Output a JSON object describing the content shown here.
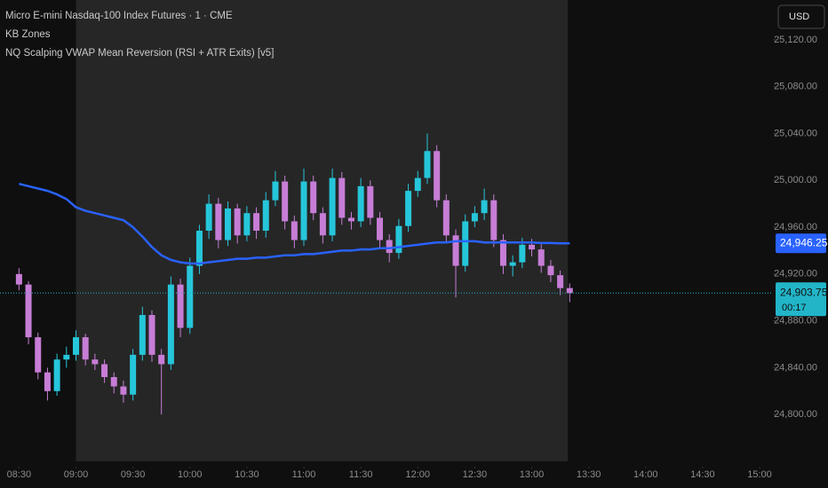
{
  "chart_data": {
    "type": "candlestick",
    "title": "Micro E-mini Nasdaq-100 Index Futures · 1 · CME",
    "indicators": [
      "KB Zones",
      "NQ Scalping VWAP Mean Reversion (RSI + ATR Exits) [v5]"
    ],
    "currency": "USD",
    "x": [
      "08:30",
      "08:35",
      "08:40",
      "08:45",
      "08:50",
      "08:55",
      "09:00",
      "09:05",
      "09:10",
      "09:15",
      "09:20",
      "09:25",
      "09:30",
      "09:35",
      "09:40",
      "09:45",
      "09:50",
      "09:55",
      "10:00",
      "10:05",
      "10:10",
      "10:15",
      "10:20",
      "10:25",
      "10:30",
      "10:35",
      "10:40",
      "10:45",
      "10:50",
      "10:55",
      "11:00",
      "11:05",
      "11:10",
      "11:15",
      "11:20",
      "11:25",
      "11:30",
      "11:35",
      "11:40",
      "11:45",
      "11:50",
      "11:55",
      "12:00",
      "12:05",
      "12:10",
      "12:15",
      "12:20",
      "12:25",
      "12:30",
      "12:35",
      "12:40",
      "12:45",
      "12:50",
      "12:55",
      "13:00",
      "13:05",
      "13:10",
      "13:15",
      "13:20"
    ],
    "open": [
      24920,
      24911,
      24866,
      24836,
      24820,
      24847,
      24851,
      24866,
      24847,
      24843,
      24832,
      24824,
      24817,
      24851,
      24885,
      24851,
      24843,
      24911,
      24874,
      24927,
      24957,
      24980,
      24949,
      24976,
      24953,
      24972,
      24957,
      24983,
      24999,
      24965,
      24949,
      24999,
      24972,
      24953,
      25002,
      24968,
      24965,
      24995,
      24968,
      24949,
      24938,
      24961,
      24991,
      25002,
      25025,
      24983,
      24953,
      24927,
      24965,
      24972,
      24983,
      24949,
      24927,
      24930,
      24945,
      24941,
      24927,
      24919,
      24908
    ],
    "high": [
      24925,
      24914,
      24870,
      24840,
      24852,
      24858,
      24872,
      24869,
      24852,
      24847,
      24836,
      24829,
      24856,
      24892,
      24889,
      24856,
      24918,
      24916,
      24934,
      24962,
      24988,
      24985,
      24982,
      24980,
      24978,
      24977,
      24990,
      25008,
      25004,
      24970,
      25010,
      25004,
      24977,
      25010,
      25007,
      24973,
      25002,
      25000,
      24973,
      24954,
      24967,
      24997,
      25008,
      25040,
      25030,
      24988,
      24958,
      24971,
      24978,
      24993,
      24988,
      24954,
      24936,
      24951,
      24950,
      24946,
      24932,
      24923,
      24912
    ],
    "low": [
      24906,
      24860,
      24830,
      24812,
      24816,
      24840,
      24846,
      24842,
      24838,
      24827,
      24818,
      24810,
      24812,
      24846,
      24845,
      24800,
      24838,
      24866,
      24869,
      24920,
      24950,
      24942,
      24944,
      24946,
      24948,
      24950,
      24951,
      24978,
      24958,
      24942,
      24944,
      24966,
      24946,
      24948,
      24962,
      24958,
      24960,
      24962,
      24942,
      24930,
      24933,
      24956,
      24986,
      24997,
      24977,
      24947,
      24900,
      24922,
      24960,
      24966,
      24943,
      24920,
      24918,
      24925,
      24935,
      24921,
      24913,
      24902,
      24896
    ],
    "close": [
      24911,
      24866,
      24836,
      24820,
      24847,
      24851,
      24866,
      24847,
      24843,
      24832,
      24824,
      24817,
      24851,
      24885,
      24851,
      24843,
      24911,
      24874,
      24927,
      24957,
      24980,
      24949,
      24976,
      24953,
      24972,
      24957,
      24983,
      24999,
      24965,
      24949,
      24999,
      24972,
      24953,
      25002,
      24968,
      24965,
      24995,
      24968,
      24949,
      24938,
      24961,
      24991,
      25002,
      25025,
      24983,
      24953,
      24927,
      24965,
      24972,
      24983,
      24949,
      24927,
      24930,
      24945,
      24941,
      24927,
      24919,
      24908,
      24903.75
    ],
    "up_color": "#26c6da",
    "down_color": "#c77dd6",
    "vwap": {
      "color": "#2962ff",
      "values": [
        24997,
        24995,
        24993,
        24991,
        24988,
        24984,
        24977,
        24974,
        24972,
        24970,
        24968,
        24966,
        24960,
        24952,
        24943,
        24936,
        24932,
        24930,
        24929,
        24929,
        24930,
        24931,
        24932,
        24933,
        24933,
        24934,
        24934,
        24935,
        24936,
        24936,
        24937,
        24937,
        24938,
        24939,
        24940,
        24940,
        24941,
        24941,
        24942,
        24942,
        24943,
        24944,
        24945,
        24946,
        24947,
        24947,
        24948,
        24948,
        24948,
        24947,
        24947,
        24947,
        24947,
        24947,
        24947,
        24946.5,
        24946.5,
        24946.25,
        24946.25
      ],
      "label": {
        "value": 24946.25,
        "label": "24,946.25"
      }
    },
    "last_price": {
      "value": 24903.75,
      "label": "24,903.75",
      "countdown": "00:17",
      "color": "#22b5c8"
    },
    "session": [
      "09:00",
      "13:19"
    ],
    "xlim": [
      "08:20",
      "15:07"
    ],
    "xticks": [
      "08:30",
      "09:00",
      "09:30",
      "10:00",
      "10:30",
      "11:00",
      "11:30",
      "12:00",
      "12:30",
      "13:00",
      "13:30",
      "14:00",
      "14:30",
      "15:00"
    ],
    "ylim": [
      24760,
      25154
    ],
    "yticks": [
      {
        "value": 25120,
        "label": "25,120.00"
      },
      {
        "value": 25080,
        "label": "25,080.00"
      },
      {
        "value": 25040,
        "label": "25,040.00"
      },
      {
        "value": 25000,
        "label": "25,000.00"
      },
      {
        "value": 24960,
        "label": "24,960.00"
      },
      {
        "value": 24920,
        "label": "24,920.00"
      },
      {
        "value": 24880,
        "label": "24,880.00"
      },
      {
        "value": 24840,
        "label": "24,840.00"
      },
      {
        "value": 24800,
        "label": "24,800.00"
      }
    ]
  }
}
